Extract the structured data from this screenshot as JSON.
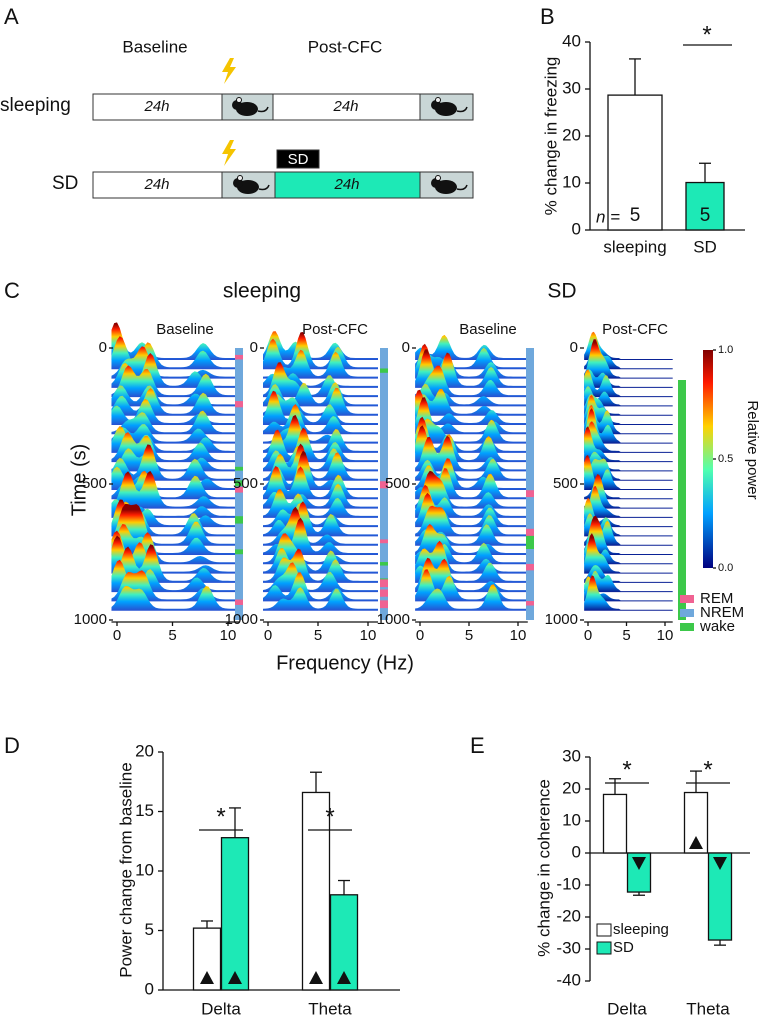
{
  "panels": {
    "a": "A",
    "b": "B",
    "c": "C",
    "d": "D",
    "e": "E"
  },
  "schematic": {
    "phases": [
      "Baseline",
      "Post-CFC"
    ],
    "rows": [
      {
        "label": "sleeping",
        "baseline": "24h",
        "post": "24h",
        "post_color": "#ffffff"
      },
      {
        "label": "SD",
        "baseline": "24h",
        "post": "24h",
        "post_color": "#1de9b6",
        "tag": "SD"
      }
    ]
  },
  "spectrograms": {
    "groups": [
      "sleeping",
      "SD"
    ],
    "panels": [
      "Baseline",
      "Post-CFC",
      "Baseline",
      "Post-CFC"
    ],
    "ylabel": "Time (s)",
    "xlabel": "Frequency (Hz)",
    "ylim": [
      0,
      1000
    ],
    "yticks": [
      0,
      500,
      1000
    ],
    "xlim": [
      0,
      10
    ],
    "xticks": [
      0,
      5,
      10
    ],
    "colorbar": {
      "label": "Relative power",
      "lim": [
        0,
        1
      ],
      "ticks": [
        {
          "value": 1,
          "label": "1.0"
        },
        {
          "value": 0.5,
          "label": "0.5"
        },
        {
          "value": 0,
          "label": "0.0"
        }
      ]
    },
    "states": [
      {
        "name": "REM",
        "color": "#f06292"
      },
      {
        "name": "NREM",
        "color": "#6fa8dc"
      },
      {
        "name": "wake",
        "color": "#3cc84a"
      }
    ]
  },
  "chart_data": [
    {
      "type": "bar",
      "ylabel": "% change in freezing",
      "categories": [
        "sleeping",
        "SD"
      ],
      "values": [
        28.7,
        10.1
      ],
      "errors": [
        7.7,
        4.1
      ],
      "colors": [
        "#ffffff",
        "#1de9b6"
      ],
      "ylim": [
        0,
        40
      ],
      "yticks": [
        0,
        10,
        20,
        30,
        40
      ],
      "n_label": "n =",
      "n": [
        5,
        5
      ],
      "significance": "*"
    },
    {
      "type": "grouped_bar",
      "ylabel": "Power change from baseline",
      "categories": [
        "Delta",
        "Theta"
      ],
      "series": [
        {
          "color": "#ffffff",
          "values": [
            5.2,
            16.6
          ],
          "errors": [
            0.6,
            1.7
          ],
          "markers": [
            "up",
            "up"
          ]
        },
        {
          "color": "#1de9b6",
          "values": [
            12.8,
            8.0
          ],
          "errors": [
            2.5,
            1.2
          ],
          "markers": [
            "up",
            "up"
          ]
        }
      ],
      "ylim": [
        0,
        20
      ],
      "yticks": [
        0,
        5,
        10,
        15,
        20
      ],
      "significance": [
        "*",
        "*"
      ]
    },
    {
      "type": "grouped_bar",
      "ylabel": "% change in coherence",
      "categories": [
        "Delta",
        "Theta"
      ],
      "series": [
        {
          "name": "sleeping",
          "color": "#ffffff",
          "values": [
            18.3,
            18.9
          ],
          "errors": [
            4.9,
            6.7
          ],
          "markers": [
            null,
            "up"
          ]
        },
        {
          "name": "SD",
          "color": "#1de9b6",
          "values": [
            -12.2,
            -27.2
          ],
          "errors": [
            1.0,
            1.6
          ],
          "markers": [
            "down",
            "down"
          ]
        }
      ],
      "ylim": [
        -40,
        30
      ],
      "yticks": [
        -40,
        -30,
        -20,
        -10,
        0,
        10,
        20,
        30
      ],
      "significance": [
        "*",
        "*"
      ],
      "legend": "lower left"
    }
  ]
}
